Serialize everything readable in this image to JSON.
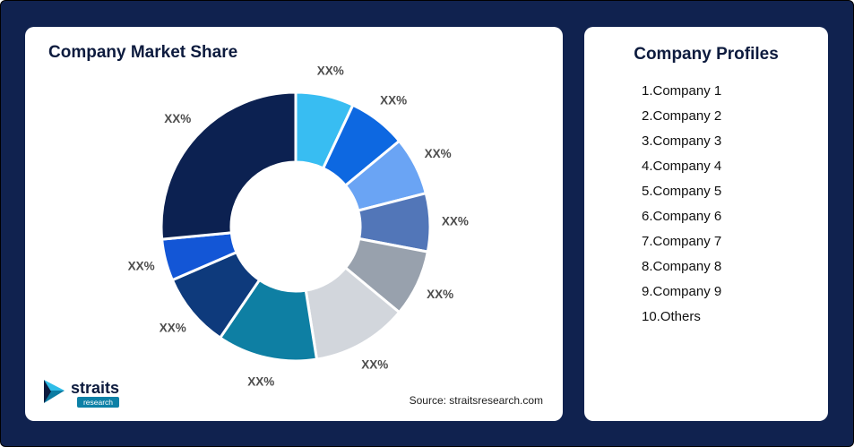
{
  "page": {
    "background_color": "#10224f"
  },
  "market_share_card": {
    "title": "Company Market Share",
    "source": "Source: straitsresearch.com"
  },
  "profiles_card": {
    "title": "Company Profiles",
    "items": [
      "1.Company 1",
      "2.Company 2",
      "3.Company 3",
      "4.Company 4",
      "5.Company 5",
      "6.Company 6",
      "7.Company 7",
      "8.Company 8",
      "9.Company 9",
      "10.Others"
    ]
  },
  "logo": {
    "name": "straits",
    "sub": "research",
    "accent_color": "#0c80a6",
    "icon_color": "#2fbde8"
  },
  "chart_data": {
    "type": "pie",
    "subtype": "donut",
    "title": "Company Market Share",
    "legend_position": "none",
    "label_placeholder": "XX%",
    "segments": [
      {
        "label": "XX%",
        "value": 7,
        "color": "#38bdf2"
      },
      {
        "label": "XX%",
        "value": 7,
        "color": "#0d68e1"
      },
      {
        "label": "XX%",
        "value": 7,
        "color": "#6aa4f4"
      },
      {
        "label": "XX%",
        "value": 7,
        "color": "#5276b8"
      },
      {
        "label": "XX%",
        "value": 8,
        "color": "#98a1ad"
      },
      {
        "label": "XX%",
        "value": 11.5,
        "color": "#d2d6dc"
      },
      {
        "label": "XX%",
        "value": 12,
        "color": "#0e7fa3"
      },
      {
        "label": "XX%",
        "value": 9,
        "color": "#0e3a7c"
      },
      {
        "label": "XX%",
        "value": 5,
        "color": "#1356d6"
      },
      {
        "label": "XX%",
        "value": 26.5,
        "color": "#0c2151"
      }
    ]
  }
}
